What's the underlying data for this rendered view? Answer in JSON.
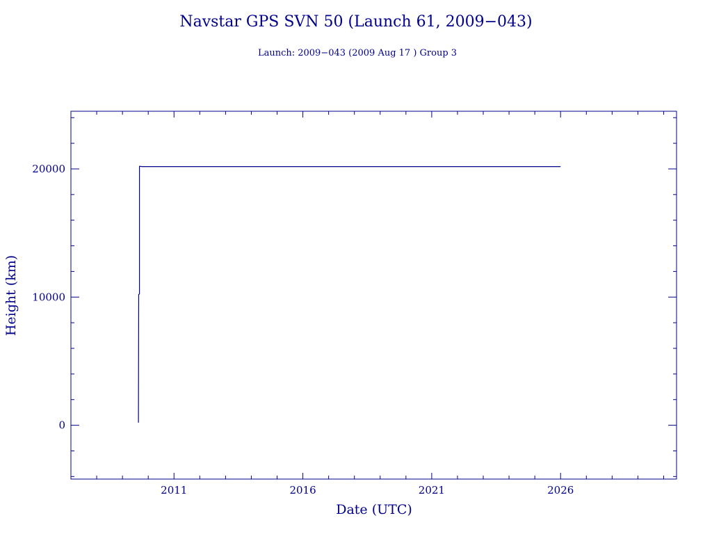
{
  "chart_data": {
    "type": "line",
    "title": "Navstar GPS SVN 50 (Launch 61, 2009−043)",
    "subtitle": "Launch: 2009−043  (2009 Aug 17 )  Group 3",
    "xlabel": "Date (UTC)",
    "ylabel": "Height (km)",
    "xlim": [
      2007.0,
      2030.5
    ],
    "ylim": [
      -4200,
      24500
    ],
    "x_ticks": [
      2011,
      2016,
      2021,
      2026
    ],
    "x_tick_labels": [
      "2011",
      "2016",
      "2021",
      "2026"
    ],
    "y_ticks": [
      0,
      10000,
      20000
    ],
    "y_tick_labels": [
      "0",
      "10000",
      "20000"
    ],
    "grid": false,
    "series": [
      {
        "x": [
          2009.62,
          2009.63,
          2009.63,
          2009.66,
          2009.66,
          2009.7,
          2009.75,
          2026.0
        ],
        "y": [
          200,
          10200,
          10200,
          10250,
          20200,
          20200,
          20180,
          20180
        ]
      }
    ],
    "color": "#00008b"
  }
}
